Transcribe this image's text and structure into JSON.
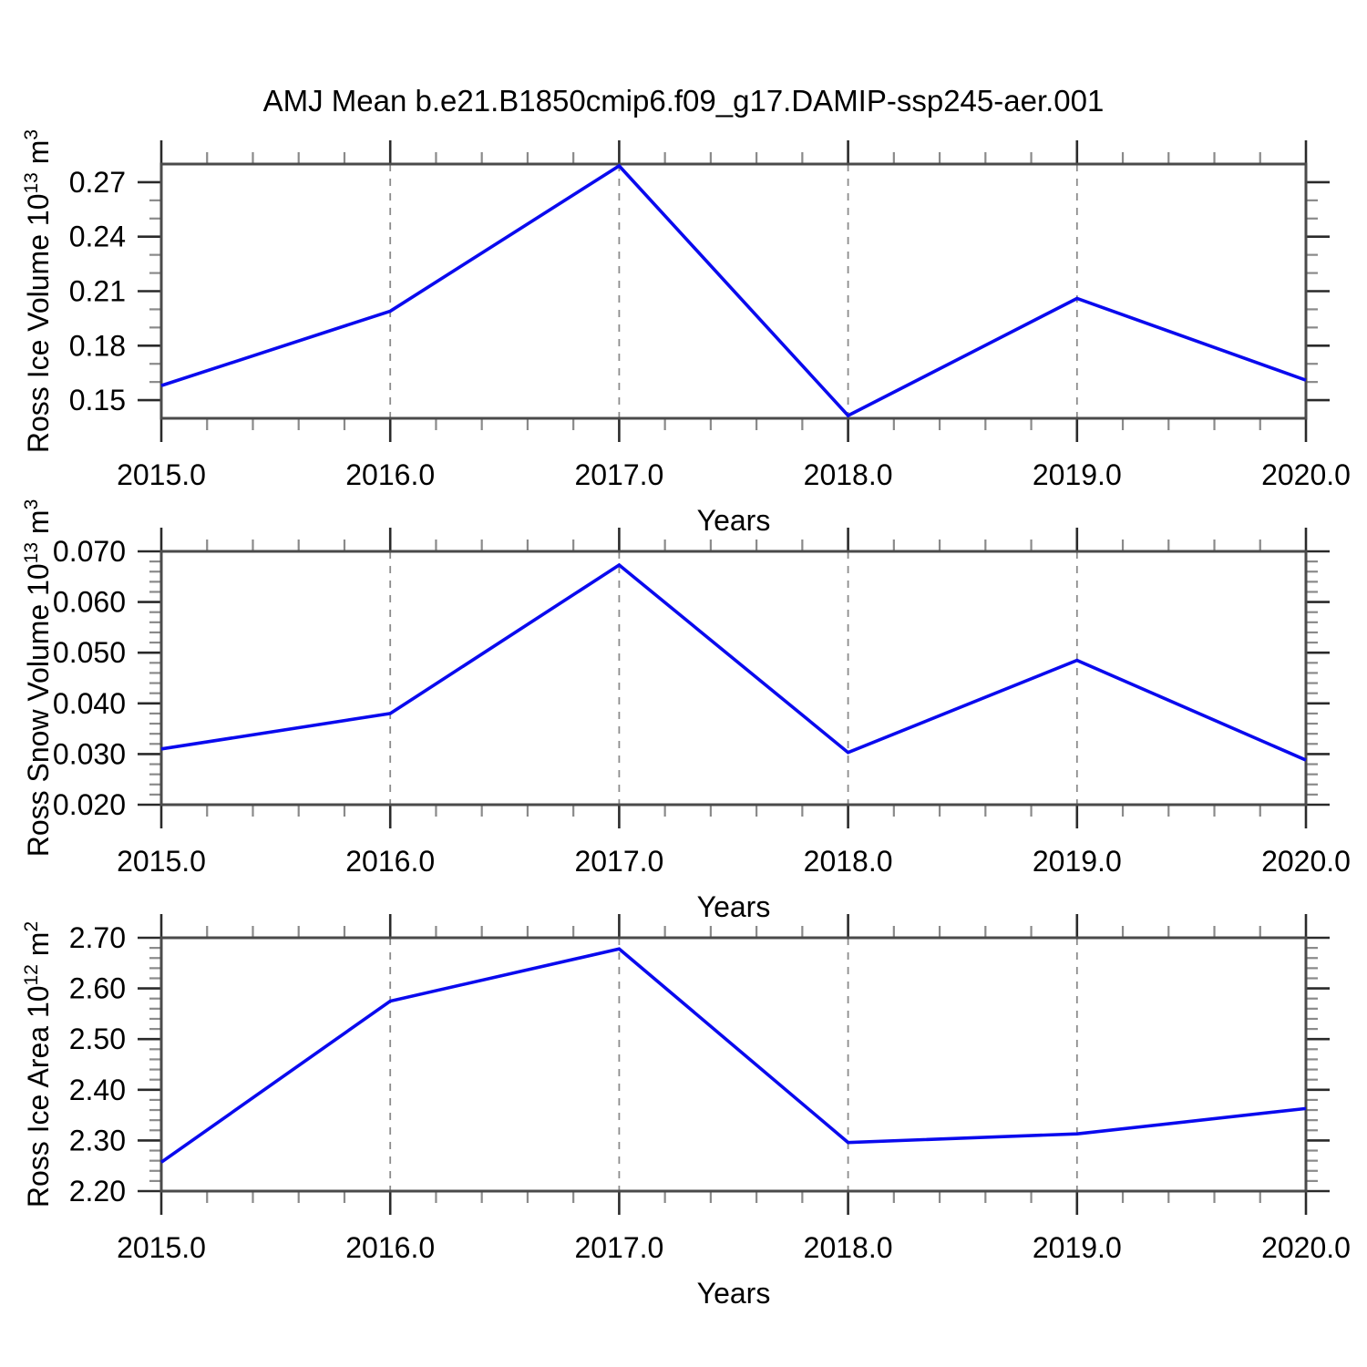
{
  "title": "AMJ Mean b.e21.B1850cmip6.f09_g17.DAMIP-ssp245-aer.001",
  "colors": {
    "line": "#0a0aee",
    "frame": "#4a4a4a",
    "major_tick": "#2a2a2a",
    "minor_tick": "#8a8a8a",
    "grid": "#8c8c8c",
    "text": "#000000",
    "background": "#ffffff"
  },
  "chart_data": [
    {
      "type": "line",
      "title": "",
      "xlabel": "Years",
      "ylabel_text": "Ross Ice Volume 10^13 m^3",
      "ylabel_parts": [
        {
          "t": "Ross Ice Volume 10"
        },
        {
          "t": "13",
          "sup": true
        },
        {
          "t": " m"
        },
        {
          "t": "3",
          "sup": true
        }
      ],
      "x": [
        2015,
        2016,
        2017,
        2018,
        2019,
        2020
      ],
      "values": [
        0.158,
        0.199,
        0.279,
        0.1415,
        0.206,
        0.161
      ],
      "xlim": [
        2015,
        2020
      ],
      "ylim": [
        0.14,
        0.28
      ],
      "xtick_values": [
        2015,
        2016,
        2017,
        2018,
        2019,
        2020
      ],
      "xtick_labels": [
        "2015.0",
        "2016.0",
        "2017.0",
        "2018.0",
        "2019.0",
        "2020.0"
      ],
      "xtick_minor_step": 0.2,
      "ytick_values": [
        0.15,
        0.18,
        0.21,
        0.24,
        0.27
      ],
      "ytick_labels": [
        "0.15",
        "0.18",
        "0.21",
        "0.24",
        "0.27"
      ],
      "ytick_minor_step": 0.01,
      "grid_x": [
        2016,
        2017,
        2018,
        2019
      ],
      "legend": "none",
      "grid": "vertical-dashed"
    },
    {
      "type": "line",
      "title": "",
      "xlabel": "Years",
      "ylabel_text": "Ross Snow Volume 10^13 m^3",
      "ylabel_parts": [
        {
          "t": "Ross Snow Volume 10"
        },
        {
          "t": "13",
          "sup": true
        },
        {
          "t": " m"
        },
        {
          "t": "3",
          "sup": true
        }
      ],
      "x": [
        2015,
        2016,
        2017,
        2018,
        2019,
        2020
      ],
      "values": [
        0.031,
        0.038,
        0.0673,
        0.0303,
        0.0485,
        0.0288
      ],
      "xlim": [
        2015,
        2020
      ],
      "ylim": [
        0.02,
        0.07
      ],
      "xtick_values": [
        2015,
        2016,
        2017,
        2018,
        2019,
        2020
      ],
      "xtick_labels": [
        "2015.0",
        "2016.0",
        "2017.0",
        "2018.0",
        "2019.0",
        "2020.0"
      ],
      "xtick_minor_step": 0.2,
      "ytick_values": [
        0.02,
        0.03,
        0.04,
        0.05,
        0.06,
        0.07
      ],
      "ytick_labels": [
        "0.020",
        "0.030",
        "0.040",
        "0.050",
        "0.060",
        "0.070"
      ],
      "ytick_minor_step": 0.002,
      "grid_x": [
        2016,
        2017,
        2018,
        2019
      ],
      "legend": "none",
      "grid": "vertical-dashed"
    },
    {
      "type": "line",
      "title": "",
      "xlabel": "Years",
      "ylabel_text": "Ross Ice Area 10^12 m^2",
      "ylabel_parts": [
        {
          "t": "Ross Ice Area 10"
        },
        {
          "t": "12",
          "sup": true
        },
        {
          "t": " m"
        },
        {
          "t": "2",
          "sup": true
        }
      ],
      "x": [
        2015,
        2016,
        2017,
        2018,
        2019,
        2020
      ],
      "values": [
        2.257,
        2.575,
        2.678,
        2.296,
        2.313,
        2.363
      ],
      "xlim": [
        2015,
        2020
      ],
      "ylim": [
        2.2,
        2.7
      ],
      "xtick_values": [
        2015,
        2016,
        2017,
        2018,
        2019,
        2020
      ],
      "xtick_labels": [
        "2015.0",
        "2016.0",
        "2017.0",
        "2018.0",
        "2019.0",
        "2020.0"
      ],
      "xtick_minor_step": 0.2,
      "ytick_values": [
        2.2,
        2.3,
        2.4,
        2.5,
        2.6,
        2.7
      ],
      "ytick_labels": [
        "2.20",
        "2.30",
        "2.40",
        "2.50",
        "2.60",
        "2.70"
      ],
      "ytick_minor_step": 0.02,
      "grid_x": [
        2016,
        2017,
        2018,
        2019
      ],
      "legend": "none",
      "grid": "vertical-dashed"
    }
  ]
}
